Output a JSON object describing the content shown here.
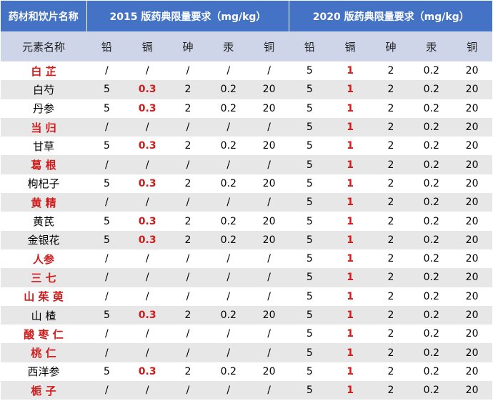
{
  "header": {
    "col_name": "药材和饮片名称",
    "group_2015": "2015 版药典限量要求（mg/kg）",
    "group_2020": "2020 版药典限量要求（mg/kg）",
    "element_label": "元素名称",
    "elements_2015": [
      "铅",
      "镉",
      "砷",
      "汞",
      "铜"
    ],
    "elements_2020": [
      "铅",
      "镉",
      "砷",
      "汞",
      "铜"
    ]
  },
  "rows": [
    {
      "name": "白 芷",
      "red": true,
      "v2015": [
        "/",
        "/",
        "/",
        "/",
        "/"
      ],
      "v2020": [
        "5",
        "1",
        "2",
        "0.2",
        "20"
      ]
    },
    {
      "name": "白芍",
      "red": false,
      "v2015": [
        "5",
        "0.3",
        "2",
        "0.2",
        "20"
      ],
      "v2020": [
        "5",
        "1",
        "2",
        "0.2",
        "20"
      ]
    },
    {
      "name": "丹参",
      "red": false,
      "v2015": [
        "5",
        "0.3",
        "2",
        "0.2",
        "20"
      ],
      "v2020": [
        "5",
        "1",
        "2",
        "0.2",
        "20"
      ]
    },
    {
      "name": "当 归",
      "red": true,
      "v2015": [
        "/",
        "/",
        "/",
        "/",
        "/"
      ],
      "v2020": [
        "5",
        "1",
        "2",
        "0.2",
        "20"
      ]
    },
    {
      "name": "甘草",
      "red": false,
      "v2015": [
        "5",
        "0.3",
        "2",
        "0.2",
        "20"
      ],
      "v2020": [
        "5",
        "1",
        "2",
        "0.2",
        "20"
      ]
    },
    {
      "name": "葛 根",
      "red": true,
      "v2015": [
        "/",
        "/",
        "/",
        "/",
        "/"
      ],
      "v2020": [
        "5",
        "1",
        "2",
        "0.2",
        "20"
      ]
    },
    {
      "name": "枸杞子",
      "red": false,
      "v2015": [
        "5",
        "0.3",
        "2",
        "0.2",
        "20"
      ],
      "v2020": [
        "5",
        "1",
        "2",
        "0.2",
        "20"
      ]
    },
    {
      "name": "黄 精",
      "red": true,
      "v2015": [
        "/",
        "/",
        "/",
        "/",
        "/"
      ],
      "v2020": [
        "5",
        "1",
        "2",
        "0.2",
        "20"
      ]
    },
    {
      "name": "黄芪",
      "red": false,
      "v2015": [
        "5",
        "0.3",
        "2",
        "0.2",
        "20"
      ],
      "v2020": [
        "5",
        "1",
        "2",
        "0.2",
        "20"
      ]
    },
    {
      "name": "金银花",
      "red": false,
      "v2015": [
        "5",
        "0.3",
        "2",
        "0.2",
        "20"
      ],
      "v2020": [
        "5",
        "1",
        "2",
        "0.2",
        "20"
      ]
    },
    {
      "name": "人参",
      "red": true,
      "v2015": [
        "/",
        "/",
        "/",
        "/",
        "/"
      ],
      "v2020": [
        "5",
        "1",
        "2",
        "0.2",
        "20"
      ]
    },
    {
      "name": "三 七",
      "red": true,
      "v2015": [
        "/",
        "/",
        "/",
        "/",
        "/"
      ],
      "v2020": [
        "5",
        "1",
        "2",
        "0.2",
        "20"
      ]
    },
    {
      "name": "山 茱 萸",
      "red": true,
      "v2015": [
        "/",
        "/",
        "/",
        "/",
        "/"
      ],
      "v2020": [
        "5",
        "1",
        "2",
        "0.2",
        "20"
      ]
    },
    {
      "name": "山 楂",
      "red": false,
      "v2015": [
        "5",
        "0.3",
        "2",
        "0.2",
        "20"
      ],
      "v2020": [
        "5",
        "1",
        "2",
        "0.2",
        "20"
      ]
    },
    {
      "name": "酸 枣 仁",
      "red": true,
      "v2015": [
        "/",
        "/",
        "/",
        "/",
        "/"
      ],
      "v2020": [
        "5",
        "1",
        "2",
        "0.2",
        "20"
      ]
    },
    {
      "name": "桃 仁",
      "red": true,
      "v2015": [
        "/",
        "/",
        "/",
        "/",
        "/"
      ],
      "v2020": [
        "5",
        "1",
        "2",
        "0.2",
        "20"
      ]
    },
    {
      "name": "西洋参",
      "red": false,
      "v2015": [
        "5",
        "0.3",
        "2",
        "0.2",
        "20"
      ],
      "v2020": [
        "5",
        "1",
        "2",
        "0.2",
        "20"
      ]
    },
    {
      "name": "栀 子",
      "red": true,
      "v2015": [
        "/",
        "/",
        "/",
        "/",
        "/"
      ],
      "v2020": [
        "5",
        "1",
        "2",
        "0.2",
        "20"
      ]
    }
  ]
}
